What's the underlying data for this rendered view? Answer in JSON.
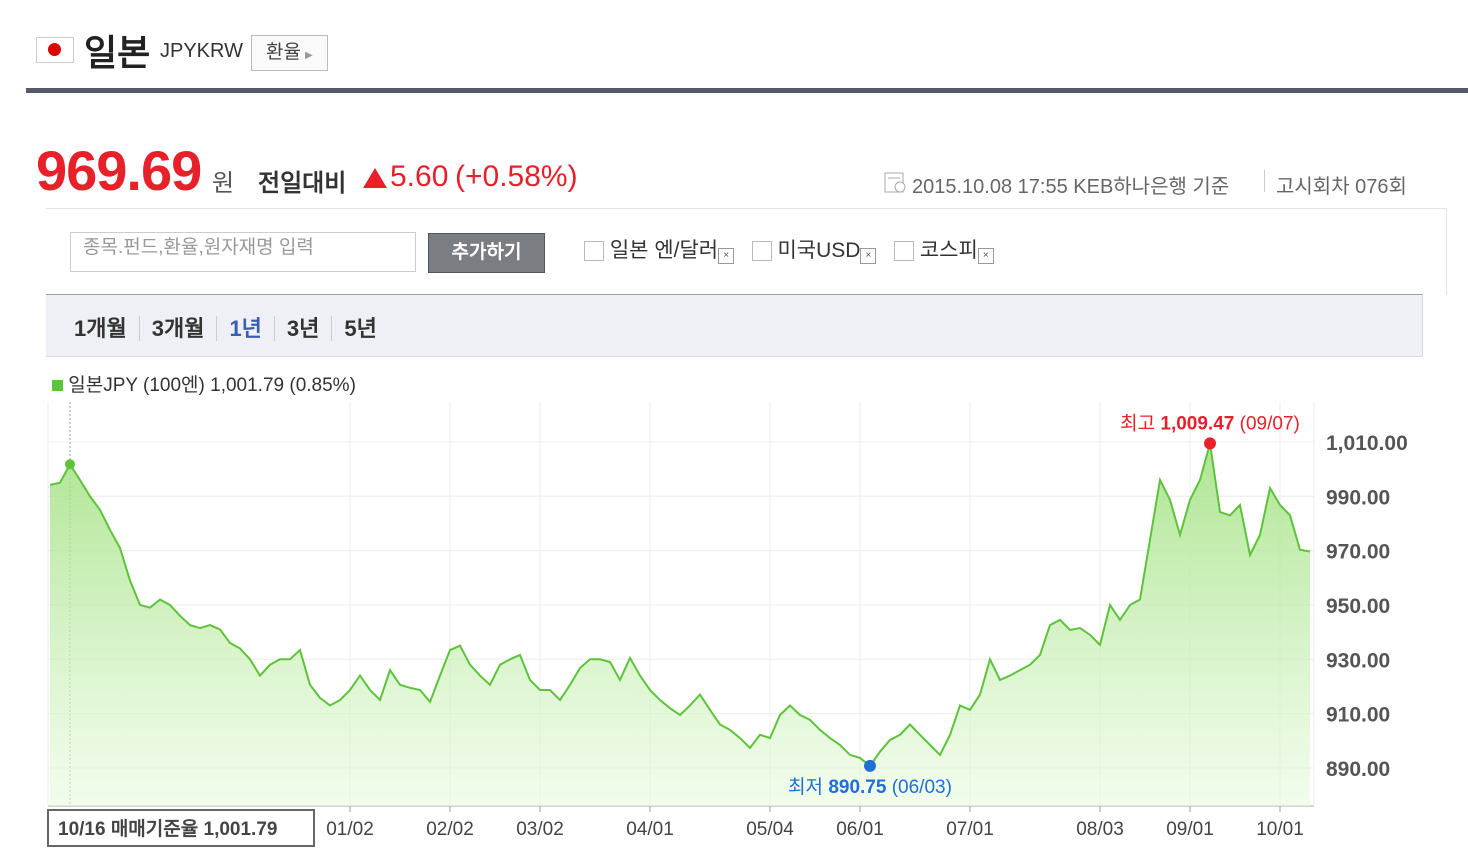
{
  "header": {
    "title": "일본",
    "code": "JPYKRW",
    "button": "환율"
  },
  "quote": {
    "price": "969.69",
    "unit": "원",
    "change_label": "전일대비",
    "change": "5.60",
    "change_pct": "(+0.58%)",
    "timestamp": "2015.10.08 17:55 KEB하나은행 기준",
    "notice": "고시회차 076회"
  },
  "search": {
    "placeholder": "종목.펀드,환율,원자재명 입력",
    "button": "추가하기",
    "compare": [
      "일본 엔/달러",
      "미국USD",
      "코스피"
    ]
  },
  "periods": {
    "options": [
      "1개월",
      "3개월",
      "1년",
      "3년",
      "5년"
    ],
    "selected": "1년"
  },
  "chart_data": {
    "type": "line",
    "legend_value": "1,001.79 (0.85%)",
    "categories": [
      null,
      null,
      "10/16",
      null,
      null,
      null,
      null,
      null,
      null,
      null,
      null,
      null,
      null,
      null,
      null,
      null,
      null,
      null,
      null,
      null,
      null,
      null,
      null,
      null,
      null,
      null,
      null,
      null,
      null,
      null,
      "01/02",
      null,
      null,
      null,
      null,
      null,
      null,
      null,
      null,
      null,
      "02/02",
      null,
      null,
      null,
      null,
      null,
      null,
      null,
      null,
      "03/02",
      null,
      null,
      null,
      null,
      null,
      null,
      null,
      null,
      null,
      null,
      "04/01",
      null,
      null,
      null,
      null,
      null,
      null,
      null,
      null,
      null,
      null,
      null,
      "05/04",
      null,
      null,
      null,
      null,
      null,
      null,
      null,
      null,
      "06/01",
      null,
      null,
      null,
      null,
      null,
      null,
      null,
      null,
      null,
      null,
      "07/01",
      null,
      null,
      null,
      null,
      null,
      null,
      null,
      null,
      null,
      null,
      null,
      null,
      "08/03",
      null,
      null,
      null,
      null,
      null,
      null,
      null,
      null,
      "09/01",
      null,
      null,
      null,
      null,
      null,
      null,
      null,
      null,
      "10/01",
      null,
      null,
      null
    ],
    "series": [
      {
        "name": "일본JPY (100엔)",
        "color": "#5cc33a",
        "values": [
          994.2,
          995,
          1001.79,
          996,
          990,
          985,
          977.6,
          971,
          959,
          950,
          949,
          952,
          950,
          946,
          942.6,
          941.5,
          942.6,
          941,
          936,
          934,
          930,
          924,
          928,
          930,
          930,
          933.4,
          920.6,
          915.8,
          913,
          915,
          918.7,
          924,
          918.7,
          915,
          926,
          920.6,
          919.5,
          918.7,
          914.3,
          924,
          933.4,
          935,
          928,
          924,
          920.6,
          928,
          930,
          931.6,
          922.4,
          918.7,
          918.7,
          915,
          920.6,
          926.8,
          930,
          930,
          929,
          922.4,
          930.5,
          924,
          918.7,
          915,
          912,
          909.5,
          913,
          917,
          911.4,
          906,
          904,
          901,
          897.4,
          902.2,
          901,
          909.5,
          913,
          909.5,
          907.7,
          904,
          901,
          898.5,
          894.8,
          893.7,
          890.75,
          896,
          900.3,
          902.2,
          906,
          902.2,
          898.5,
          894.8,
          902.2,
          913,
          911.4,
          917,
          930,
          922.4,
          924,
          926,
          928,
          931.6,
          942.6,
          944.5,
          940.8,
          941.5,
          939,
          935.3,
          950,
          944.5,
          950,
          952,
          974,
          996,
          988.7,
          975.8,
          988.7,
          996,
          1009.47,
          984.2,
          983,
          986.8,
          968.4,
          975.8,
          993,
          986.8,
          983,
          970.3,
          969.69
        ]
      }
    ],
    "reference": {
      "label": "매매기준율",
      "value": "1,001.79"
    },
    "high": {
      "label": "최고",
      "value": "1,009.47",
      "date": "(09/07)",
      "color": "#e8202a"
    },
    "low": {
      "label": "최저",
      "value": "890.75",
      "date": "(06/03)",
      "color": "#1e6fd6"
    },
    "ylim": [
      876,
      1024.7
    ],
    "yticks": [
      {
        "value": 890,
        "label": "890.00"
      },
      {
        "value": 910,
        "label": "910.00"
      },
      {
        "value": 930,
        "label": "930.00"
      },
      {
        "value": 950,
        "label": "950.00"
      },
      {
        "value": 970,
        "label": "970.00"
      },
      {
        "value": 990,
        "label": "990.00"
      },
      {
        "value": 1010,
        "label": "1,010.00"
      }
    ],
    "grid": true
  }
}
